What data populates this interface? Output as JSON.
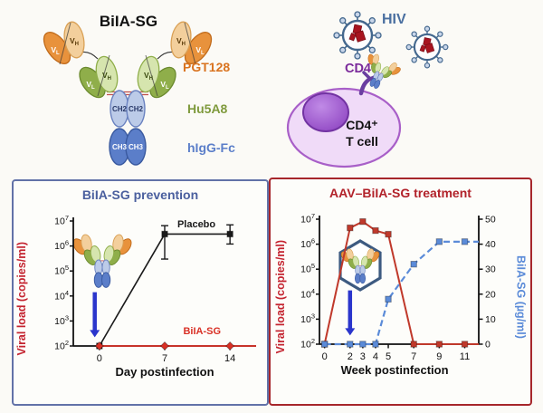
{
  "colors": {
    "panel_left_border": "#6272a8",
    "panel_right_border": "#a6262b",
    "viral_load_axis_red": "#c42430",
    "biiasg_axis_blue": "#5b8bd8",
    "prevention_title_blue": "#4a5f9e",
    "treatment_title_red": "#b2222a",
    "injection_arrow_blue": "#2a35cc",
    "placebo_black": "#1a1a1a",
    "pgt128_orange": "#d9731f",
    "hu5a8_green": "#7f9a3d",
    "higg_fc_blue": "#5b7ec9",
    "hiv_label_blue": "#4a6fa0",
    "cd4_label_purple": "#7b2a9b"
  },
  "top_left": {
    "title": "BiIA-SG",
    "v": "V",
    "sub_h": "H",
    "sub_l": "L",
    "ch2": "CH2",
    "ch3": "CH3",
    "pgt128": "PGT128",
    "hu5a8": "Hu5A8",
    "higg_fc": "hIgG-Fc"
  },
  "top_right": {
    "hiv": "HIV",
    "cd4": "CD4",
    "cell_line1": "CD4⁺",
    "cell_line2": "T cell"
  },
  "chart_data": [
    {
      "type": "line",
      "title": "BiIA-SG prevention",
      "xlabel": "Day postinfection",
      "ylabel": "Viral load (copies/ml)",
      "yscale": "log",
      "y_exponents": [
        2,
        3,
        4,
        5,
        6,
        7
      ],
      "xticks": [
        0,
        7,
        14
      ],
      "xlim": [
        -2.8,
        16.8
      ],
      "series": [
        {
          "name": "Placebo",
          "axis": "left",
          "color": "#1a1a1a",
          "marker": "square",
          "width": 1.6,
          "x": [
            0,
            7,
            14
          ],
          "y": [
            100,
            3000000,
            3000000
          ],
          "err_low": [
            null,
            300000,
            1200000
          ],
          "err_high": [
            null,
            6500000,
            7000000
          ],
          "label": {
            "x": 10.4,
            "y": 5500000
          }
        },
        {
          "name": "BiIA-SG",
          "axis": "left",
          "color": "#d93025",
          "marker": "diamond",
          "width": 1.8,
          "x": [
            0,
            7,
            14
          ],
          "y": [
            100,
            100,
            100
          ],
          "line_extra": [
            [
              16.8,
              100
            ]
          ],
          "label": {
            "x": 11.0,
            "y": 300
          }
        }
      ],
      "annotations": {
        "injection_arrow_x": -0.5
      }
    },
    {
      "type": "line",
      "title": "AAV–BiIA-SG treatment",
      "xlabel": "Week postinfection",
      "ylabel": "Viral load (copies/ml)",
      "y2label": "BiIA-SG (µg/ml)",
      "yscale": "log",
      "y_exponents": [
        2,
        3,
        4,
        5,
        6,
        7
      ],
      "y2lim": [
        0,
        50
      ],
      "y2ticks": [
        0,
        10,
        20,
        30,
        40,
        50
      ],
      "xticks": [
        0,
        2,
        3,
        4,
        5,
        7,
        9,
        11
      ],
      "xlim": [
        -0.4,
        12.1
      ],
      "series": [
        {
          "name": "Viral load",
          "axis": "left",
          "color": "#c0392b",
          "marker": "square",
          "width": 2,
          "x": [
            0,
            2,
            3,
            4,
            5,
            7,
            9,
            11
          ],
          "y": [
            100,
            4500000,
            8000000,
            3500000,
            2500000,
            100,
            100,
            100
          ],
          "line_extra": [
            [
              12.1,
              100
            ]
          ]
        },
        {
          "name": "BiIA-SG",
          "axis": "right",
          "color": "#5b8bd8",
          "marker": "square",
          "width": 2.2,
          "dashed": true,
          "x": [
            0,
            2,
            3,
            4,
            5,
            7,
            9,
            11
          ],
          "y": [
            0,
            0,
            0,
            0,
            18,
            32,
            41,
            41
          ],
          "line_extra": [
            [
              12.1,
              41
            ]
          ]
        }
      ],
      "annotations": {
        "injection_arrow_x": 2
      }
    }
  ]
}
